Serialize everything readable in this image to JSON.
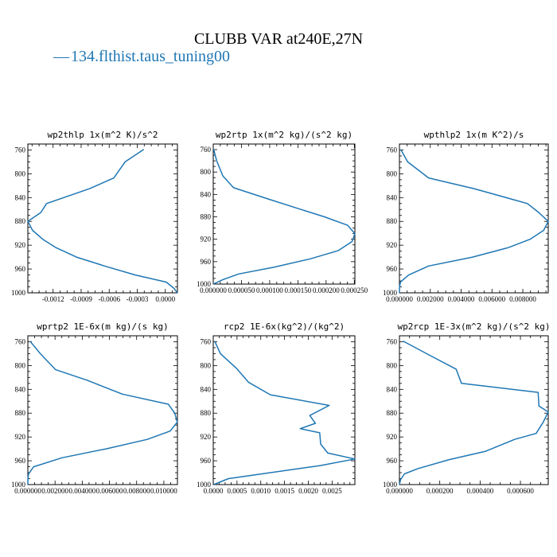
{
  "figure": {
    "title": "CLUBB VAR at240E,27N",
    "legend_label": "134.flthist.taus_tuning00",
    "legend_dash": "—",
    "line_color": "#1f77b4"
  },
  "chart_data": [
    {
      "type": "line",
      "title": "wp2thlp  1x(m^2 K)/s^2",
      "ylim": [
        1000,
        750
      ],
      "xlim": [
        -0.00147,
        0.00013
      ],
      "yticks": [
        760,
        800,
        840,
        880,
        920,
        960,
        1000
      ],
      "xticks": [
        -0.0012,
        -0.0009,
        -0.0006,
        -0.0003,
        0.0
      ],
      "xticklabels": [
        "-0.0012",
        "-0.0009",
        "-0.0006",
        "-0.0003",
        "0.0000"
      ],
      "grid": false,
      "series": [
        {
          "x": [
            -0.00023,
            -0.00043,
            -0.00055,
            -0.00081,
            -0.00127,
            -0.00133,
            -0.00147,
            -0.00142,
            -0.00131,
            -0.00117,
            -0.00095,
            -0.00065,
            -0.00032,
            1e-05,
            9e-05,
            0.00013
          ],
          "y": [
            759,
            780,
            807,
            825,
            850,
            865,
            880,
            895,
            910,
            924,
            940,
            955,
            970,
            982,
            992,
            1000
          ]
        }
      ]
    },
    {
      "type": "line",
      "title": "wp2rtp  1x(m^2 kg)/(s^2 kg)",
      "ylim": [
        1000,
        750
      ],
      "xlim": [
        0.0,
        0.000251
      ],
      "yticks": [
        760,
        800,
        840,
        880,
        920,
        960,
        1000
      ],
      "xticks": [
        0.0,
        5e-05,
        0.0001,
        0.00015,
        0.0002,
        0.00025
      ],
      "xticklabels": [
        "0.000000",
        "0.000050",
        "0.000100",
        "0.000150",
        "0.000200",
        "0.000250"
      ],
      "grid": false,
      "series": [
        {
          "x": [
            5e-07,
            6e-06,
            1.7e-05,
            3.6e-05,
            9.7e-05,
            0.000147,
            0.000197,
            0.000238,
            0.000251,
            0.000246,
            0.000222,
            0.000172,
            0.000107,
            4.5e-05,
            1.7e-05,
            1e-07
          ],
          "y": [
            759,
            780,
            807,
            828,
            848,
            864,
            880,
            895,
            910,
            924,
            940,
            955,
            970,
            982,
            992,
            1000
          ]
        }
      ]
    },
    {
      "type": "line",
      "title": "wpthlp2  1x(m K^2)/s",
      "ylim": [
        1000,
        750
      ],
      "xlim": [
        0.0,
        0.00965
      ],
      "yticks": [
        760,
        800,
        840,
        880,
        920,
        960,
        1000
      ],
      "xticks": [
        0.0,
        0.002,
        0.004,
        0.006,
        0.008
      ],
      "xticklabels": [
        "0.000000",
        "0.002000",
        "0.004000",
        "0.006000",
        "0.008000"
      ],
      "grid": false,
      "series": [
        {
          "x": [
            8e-05,
            0.00053,
            0.00189,
            0.00484,
            0.0083,
            0.00903,
            0.00965,
            0.00935,
            0.00847,
            0.00706,
            0.00474,
            0.00189,
            0.0006,
            6e-05,
            0.0,
            0.0
          ],
          "y": [
            759,
            780,
            807,
            825,
            850,
            865,
            880,
            895,
            910,
            924,
            940,
            955,
            970,
            982,
            992,
            1000
          ]
        }
      ]
    },
    {
      "type": "line",
      "title": "wprtp2  1E-6x(m kg)/(s kg)",
      "ylim": [
        1000,
        750
      ],
      "xlim": [
        0.0,
        0.011
      ],
      "yticks": [
        760,
        800,
        840,
        880,
        920,
        960,
        1000
      ],
      "xticks": [
        0.0,
        0.002,
        0.004,
        0.006,
        0.008,
        0.01
      ],
      "xticklabels": [
        "0.000000",
        "0.002000",
        "0.004000",
        "0.006000",
        "0.008000",
        "0.010000"
      ],
      "grid": false,
      "series": [
        {
          "x": [
            0.00016,
            0.00091,
            0.00204,
            0.00439,
            0.00695,
            0.01033,
            0.0108,
            0.01099,
            0.01047,
            0.00878,
            0.00575,
            0.00251,
            0.00043,
            5e-05,
            0.0,
            0.0
          ],
          "y": [
            759,
            780,
            807,
            825,
            848,
            865,
            880,
            895,
            910,
            924,
            940,
            955,
            970,
            982,
            992,
            1000
          ]
        }
      ]
    },
    {
      "type": "line",
      "title": "rcp2  1E-6x(kg^2)/(kg^2)",
      "ylim": [
        1000,
        750
      ],
      "xlim": [
        0.0,
        0.00298
      ],
      "yticks": [
        760,
        800,
        840,
        880,
        920,
        960,
        1000
      ],
      "xticks": [
        0.0,
        0.0005,
        0.001,
        0.0015,
        0.002,
        0.0025
      ],
      "xticklabels": [
        "0.0000",
        "0.0005",
        "0.0010",
        "0.0015",
        "0.0020",
        "0.0025"
      ],
      "grid": false,
      "series": [
        {
          "x": [
            3e-05,
            0.00015,
            0.00048,
            0.00074,
            0.0012,
            0.00244,
            0.00203,
            0.00215,
            0.00183,
            0.00224,
            0.00226,
            0.00241,
            0.00298,
            0.00225,
            0.00032,
            1e-05
          ],
          "y": [
            759,
            780,
            804,
            828,
            849,
            867,
            884,
            897,
            906,
            913,
            932,
            947,
            957,
            968,
            990,
            1000
          ]
        }
      ]
    },
    {
      "type": "line",
      "title": "wp2rcp  1E-3x(m^2 kg)/(s^2 kg)",
      "ylim": [
        1000,
        750
      ],
      "xlim": [
        0.0,
        0.000738
      ],
      "yticks": [
        760,
        800,
        840,
        880,
        920,
        960,
        1000
      ],
      "xticks": [
        0.0,
        0.0002,
        0.0004,
        0.0006
      ],
      "xticklabels": [
        "0.000000",
        "0.000200",
        "0.000400",
        "0.000600"
      ],
      "grid": false,
      "series": [
        {
          "x": [
            1.8e-05,
            0.000134,
            0.000281,
            0.000308,
            0.000688,
            0.000692,
            0.000738,
            0.000713,
            0.000678,
            0.000571,
            0.000428,
            0.000247,
            9.3e-05,
            2.5e-05,
            5e-06,
            0.0
          ],
          "y": [
            759,
            780,
            806,
            830,
            845,
            868,
            878,
            895,
            914,
            924,
            944,
            958,
            973,
            982,
            992,
            1000
          ]
        }
      ]
    }
  ]
}
